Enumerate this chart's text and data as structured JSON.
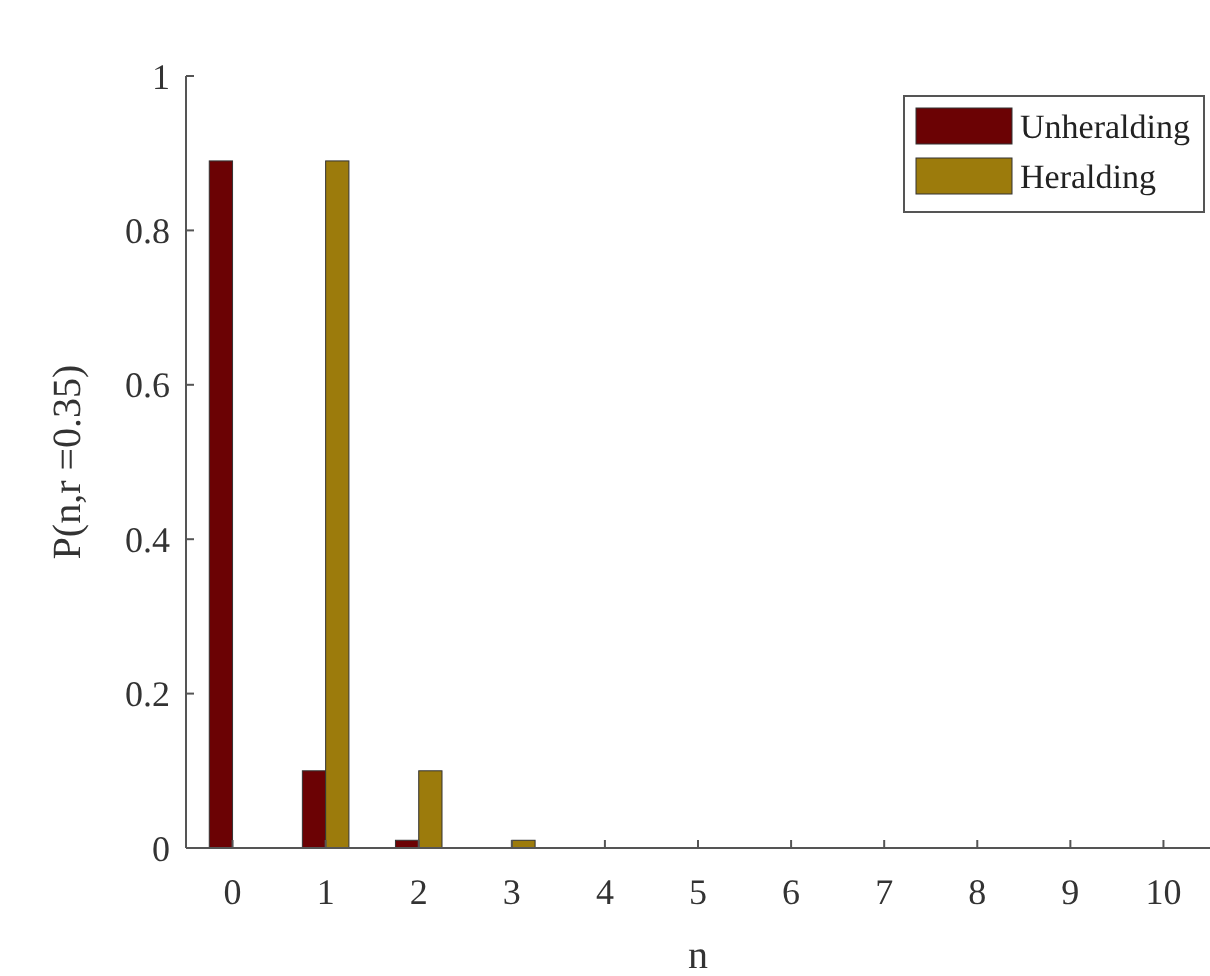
{
  "chart_data": {
    "type": "bar",
    "xlabel": "n",
    "ylabel": "P(n,r =0.35)",
    "categories": [
      "0",
      "1",
      "2",
      "3",
      "4",
      "5",
      "6",
      "7",
      "8",
      "9",
      "10"
    ],
    "series": [
      {
        "name": "Unheralding",
        "color": "#6b0204",
        "values": [
          0.89,
          0.1,
          0.01,
          0,
          0,
          0,
          0,
          0,
          0,
          0,
          0
        ]
      },
      {
        "name": "Heralding",
        "color": "#9c7b0c",
        "values": [
          0,
          0.89,
          0.1,
          0.01,
          0,
          0,
          0,
          0,
          0,
          0,
          0
        ]
      }
    ],
    "ylim": [
      0,
      1
    ],
    "yticks": [
      0,
      0.2,
      0.4,
      0.6,
      0.8,
      1
    ],
    "legend": "top right"
  }
}
